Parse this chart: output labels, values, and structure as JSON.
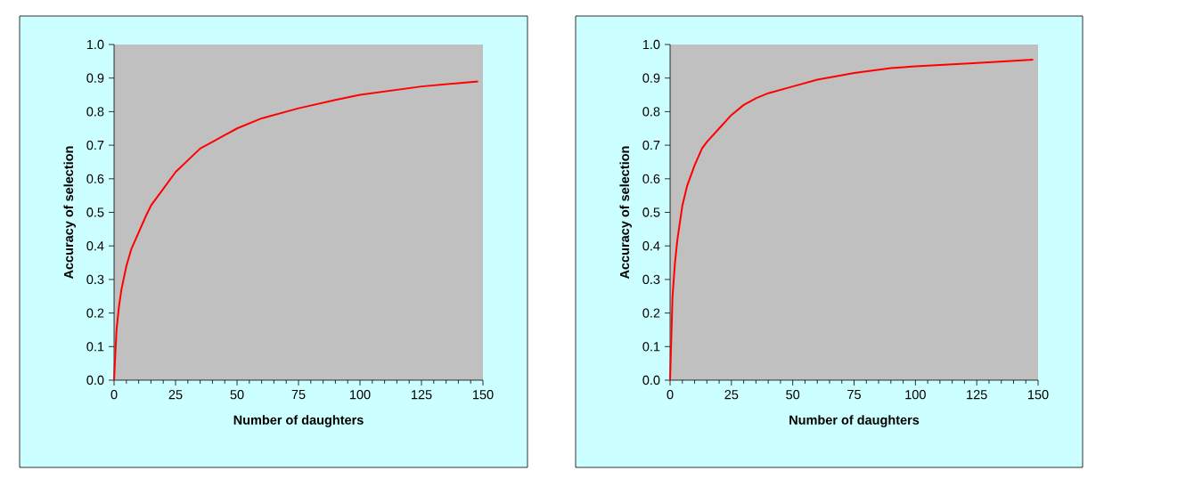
{
  "chart_data": [
    {
      "type": "line",
      "xlabel": "Number of daughters",
      "ylabel": "Accuracy of selection",
      "color": "#ff0000",
      "x": [
        0,
        1,
        2,
        3,
        5,
        7,
        10,
        13,
        15,
        20,
        25,
        30,
        35,
        40,
        50,
        60,
        75,
        90,
        100,
        125,
        148
      ],
      "values": [
        0,
        0.15,
        0.22,
        0.27,
        0.34,
        0.39,
        0.44,
        0.49,
        0.52,
        0.57,
        0.62,
        0.655,
        0.69,
        0.71,
        0.75,
        0.78,
        0.81,
        0.835,
        0.85,
        0.875,
        0.89
      ],
      "xlim": [
        0,
        150
      ],
      "ylim": [
        0,
        1
      ],
      "xticks": [
        0,
        25,
        50,
        75,
        100,
        125,
        150
      ],
      "yticks": [
        {
          "value": 0,
          "label": "0.0"
        },
        {
          "value": 0.1,
          "label": "0.1"
        },
        {
          "value": 0.2,
          "label": "0.2"
        },
        {
          "value": 0.3,
          "label": "0.3"
        },
        {
          "value": 0.4,
          "label": "0.4"
        },
        {
          "value": 0.5,
          "label": "0.5"
        },
        {
          "value": 0.6,
          "label": "0.6"
        },
        {
          "value": 0.7,
          "label": "0.7"
        },
        {
          "value": 0.8,
          "label": "0.8"
        },
        {
          "value": 0.9,
          "label": "0.9"
        },
        {
          "value": 1,
          "label": "1.0"
        }
      ]
    },
    {
      "type": "line",
      "xlabel": "Number of daughters",
      "ylabel": "Accuracy of selection",
      "color": "#ff0000",
      "x": [
        0,
        1,
        2,
        3,
        5,
        7,
        10,
        13,
        15,
        20,
        25,
        30,
        35,
        40,
        50,
        60,
        75,
        90,
        100,
        125,
        148
      ],
      "values": [
        0,
        0.25,
        0.35,
        0.42,
        0.52,
        0.58,
        0.64,
        0.69,
        0.71,
        0.75,
        0.79,
        0.82,
        0.84,
        0.855,
        0.875,
        0.895,
        0.915,
        0.93,
        0.935,
        0.945,
        0.955
      ],
      "xlim": [
        0,
        150
      ],
      "ylim": [
        0,
        1
      ],
      "xticks": [
        0,
        25,
        50,
        75,
        100,
        125,
        150
      ],
      "yticks": [
        {
          "value": 0,
          "label": "0.0"
        },
        {
          "value": 0.1,
          "label": "0.1"
        },
        {
          "value": 0.2,
          "label": "0.2"
        },
        {
          "value": 0.3,
          "label": "0.3"
        },
        {
          "value": 0.4,
          "label": "0.4"
        },
        {
          "value": 0.5,
          "label": "0.5"
        },
        {
          "value": 0.6,
          "label": "0.6"
        },
        {
          "value": 0.7,
          "label": "0.7"
        },
        {
          "value": 0.8,
          "label": "0.8"
        },
        {
          "value": 0.9,
          "label": "0.9"
        },
        {
          "value": 1,
          "label": "1.0"
        }
      ]
    }
  ]
}
